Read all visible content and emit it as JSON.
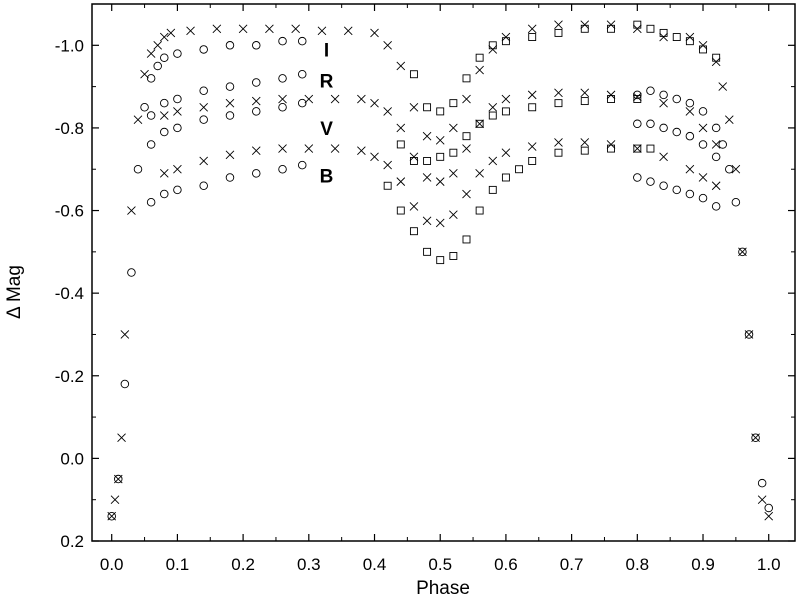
{
  "chart_data": {
    "type": "scatter",
    "title": "",
    "xlabel": "Phase",
    "ylabel": "Δ Mag",
    "xlim": [
      -0.03,
      1.04
    ],
    "ylim": [
      0.2,
      -1.1
    ],
    "y_inverted": true,
    "grid": false,
    "legend": "none",
    "x_ticks": [
      {
        "v": 0.0,
        "label": "0.0"
      },
      {
        "v": 0.1,
        "label": "0.1"
      },
      {
        "v": 0.2,
        "label": "0.2"
      },
      {
        "v": 0.3,
        "label": "0.3"
      },
      {
        "v": 0.4,
        "label": "0.4"
      },
      {
        "v": 0.5,
        "label": "0.5"
      },
      {
        "v": 0.6,
        "label": "0.6"
      },
      {
        "v": 0.7,
        "label": "0.7"
      },
      {
        "v": 0.8,
        "label": "0.8"
      },
      {
        "v": 0.9,
        "label": "0.9"
      },
      {
        "v": 1.0,
        "label": "1.0"
      }
    ],
    "y_ticks": [
      {
        "v": -1.0,
        "label": "-1.0"
      },
      {
        "v": -0.8,
        "label": "-0.8"
      },
      {
        "v": -0.6,
        "label": "-0.6"
      },
      {
        "v": -0.4,
        "label": "-0.4"
      },
      {
        "v": -0.2,
        "label": "-0.2"
      },
      {
        "v": 0.0,
        "label": "0.0"
      },
      {
        "v": 0.2,
        "label": "0.2"
      }
    ],
    "band_labels": [
      {
        "text": "I",
        "x": 0.327,
        "y": -0.99
      },
      {
        "text": "R",
        "x": 0.327,
        "y": -0.915
      },
      {
        "text": "V",
        "x": 0.327,
        "y": -0.8
      },
      {
        "text": "B",
        "x": 0.327,
        "y": -0.685
      }
    ],
    "series": [
      {
        "marker": "cross",
        "x": [
          0.0,
          0.005,
          0.01,
          0.015,
          0.02,
          0.03,
          0.04,
          0.05,
          0.06,
          0.07,
          0.08,
          0.09,
          0.12,
          0.16,
          0.2,
          0.24,
          0.28,
          0.32,
          0.36,
          0.4,
          0.42,
          0.44,
          0.46,
          0.48,
          0.5,
          0.52,
          0.54,
          0.56,
          0.58,
          0.6,
          0.64,
          0.68,
          0.72,
          0.76,
          0.8,
          0.84,
          0.88,
          0.9,
          0.92,
          0.93,
          0.94,
          0.95,
          0.96,
          0.97,
          0.98,
          0.99,
          1.0
        ],
        "y": [
          0.14,
          0.1,
          0.05,
          -0.05,
          -0.3,
          -0.6,
          -0.82,
          -0.93,
          -0.98,
          -1.0,
          -1.02,
          -1.03,
          -1.035,
          -1.04,
          -1.04,
          -1.04,
          -1.04,
          -1.035,
          -1.035,
          -1.03,
          -1.0,
          -0.95,
          -0.85,
          -0.78,
          -0.77,
          -0.8,
          -0.87,
          -0.94,
          -0.99,
          -1.02,
          -1.04,
          -1.05,
          -1.05,
          -1.05,
          -1.04,
          -1.02,
          -1.02,
          -1.0,
          -0.96,
          -0.9,
          -0.82,
          -0.7,
          -0.5,
          -0.3,
          -0.05,
          0.1,
          0.14
        ]
      },
      {
        "marker": "cross",
        "x": [
          0.08,
          0.1,
          0.14,
          0.18,
          0.22,
          0.26,
          0.3,
          0.34,
          0.38,
          0.4,
          0.42,
          0.44,
          0.46,
          0.48,
          0.5,
          0.52,
          0.54,
          0.56,
          0.58,
          0.6,
          0.64,
          0.68,
          0.72,
          0.76,
          0.8,
          0.84,
          0.88,
          0.9,
          0.92
        ],
        "y": [
          -0.83,
          -0.84,
          -0.85,
          -0.86,
          -0.865,
          -0.87,
          -0.87,
          -0.87,
          -0.87,
          -0.86,
          -0.84,
          -0.8,
          -0.73,
          -0.68,
          -0.67,
          -0.69,
          -0.75,
          -0.81,
          -0.85,
          -0.87,
          -0.88,
          -0.885,
          -0.885,
          -0.88,
          -0.875,
          -0.86,
          -0.84,
          -0.8,
          -0.76
        ]
      },
      {
        "marker": "cross",
        "x": [
          0.08,
          0.1,
          0.14,
          0.18,
          0.22,
          0.26,
          0.3,
          0.34,
          0.38,
          0.4,
          0.42,
          0.44,
          0.46,
          0.48,
          0.5,
          0.52,
          0.54,
          0.56,
          0.58,
          0.6,
          0.64,
          0.68,
          0.72,
          0.76,
          0.8,
          0.84,
          0.88,
          0.9,
          0.92
        ],
        "y": [
          -0.69,
          -0.7,
          -0.72,
          -0.735,
          -0.745,
          -0.75,
          -0.75,
          -0.75,
          -0.745,
          -0.73,
          -0.71,
          -0.67,
          -0.61,
          -0.575,
          -0.57,
          -0.59,
          -0.64,
          -0.69,
          -0.72,
          -0.74,
          -0.755,
          -0.765,
          -0.765,
          -0.76,
          -0.75,
          -0.73,
          -0.7,
          -0.68,
          -0.66
        ]
      },
      {
        "marker": "circle",
        "x": [
          0.0,
          0.01,
          0.02,
          0.03,
          0.04,
          0.05,
          0.06,
          0.07,
          0.08,
          0.1,
          0.14,
          0.18,
          0.22,
          0.26,
          0.29
        ],
        "y": [
          0.14,
          0.05,
          -0.18,
          -0.45,
          -0.7,
          -0.85,
          -0.92,
          -0.95,
          -0.97,
          -0.98,
          -0.99,
          -1.0,
          -1.0,
          -1.01,
          -1.01
        ]
      },
      {
        "marker": "circle",
        "x": [
          0.06,
          0.08,
          0.1,
          0.14,
          0.18,
          0.22,
          0.26,
          0.29
        ],
        "y": [
          -0.83,
          -0.86,
          -0.87,
          -0.89,
          -0.9,
          -0.91,
          -0.92,
          -0.93
        ]
      },
      {
        "marker": "circle",
        "x": [
          0.06,
          0.08,
          0.1,
          0.14,
          0.18,
          0.22,
          0.26,
          0.29
        ],
        "y": [
          -0.76,
          -0.79,
          -0.8,
          -0.82,
          -0.83,
          -0.84,
          -0.85,
          -0.86
        ]
      },
      {
        "marker": "circle",
        "x": [
          0.06,
          0.08,
          0.1,
          0.14,
          0.18,
          0.22,
          0.26,
          0.29
        ],
        "y": [
          -0.62,
          -0.64,
          -0.65,
          -0.66,
          -0.68,
          -0.69,
          -0.7,
          -0.71
        ]
      },
      {
        "marker": "circle",
        "x": [
          0.8,
          0.82,
          0.84,
          0.86,
          0.88,
          0.9,
          0.92,
          0.93,
          0.94,
          0.95,
          0.96,
          0.97,
          0.98,
          0.99,
          1.0
        ],
        "y": [
          -0.88,
          -0.89,
          -0.88,
          -0.87,
          -0.86,
          -0.84,
          -0.8,
          -0.76,
          -0.7,
          -0.62,
          -0.5,
          -0.3,
          -0.05,
          0.06,
          0.12
        ]
      },
      {
        "marker": "circle",
        "x": [
          0.8,
          0.82,
          0.84,
          0.86,
          0.88,
          0.9,
          0.92
        ],
        "y": [
          -0.81,
          -0.81,
          -0.8,
          -0.79,
          -0.78,
          -0.76,
          -0.73
        ]
      },
      {
        "marker": "circle",
        "x": [
          0.8,
          0.82,
          0.84,
          0.86,
          0.88,
          0.9,
          0.92
        ],
        "y": [
          -0.68,
          -0.67,
          -0.66,
          -0.65,
          -0.64,
          -0.63,
          -0.61
        ]
      },
      {
        "marker": "square",
        "x": [
          0.46,
          0.48,
          0.5,
          0.52,
          0.54,
          0.56,
          0.58,
          0.6,
          0.64,
          0.68,
          0.72,
          0.76,
          0.8,
          0.82,
          0.84,
          0.86,
          0.88,
          0.9,
          0.92
        ],
        "y": [
          -0.93,
          -0.85,
          -0.84,
          -0.86,
          -0.92,
          -0.97,
          -1.0,
          -1.01,
          -1.02,
          -1.03,
          -1.04,
          -1.04,
          -1.05,
          -1.04,
          -1.03,
          -1.02,
          -1.01,
          -0.99,
          -0.97
        ]
      },
      {
        "marker": "square",
        "x": [
          0.44,
          0.46,
          0.48,
          0.5,
          0.52,
          0.54,
          0.56,
          0.58,
          0.6,
          0.64,
          0.68,
          0.72,
          0.76,
          0.8
        ],
        "y": [
          -0.76,
          -0.72,
          -0.72,
          -0.73,
          -0.74,
          -0.78,
          -0.81,
          -0.83,
          -0.84,
          -0.85,
          -0.86,
          -0.865,
          -0.87,
          -0.87
        ]
      },
      {
        "marker": "square",
        "x": [
          0.42,
          0.44,
          0.46,
          0.48,
          0.5,
          0.52,
          0.54,
          0.56,
          0.58,
          0.6,
          0.62,
          0.64,
          0.68,
          0.72,
          0.76,
          0.8,
          0.82
        ],
        "y": [
          -0.66,
          -0.6,
          -0.55,
          -0.5,
          -0.48,
          -0.49,
          -0.53,
          -0.6,
          -0.65,
          -0.68,
          -0.7,
          -0.72,
          -0.74,
          -0.745,
          -0.75,
          -0.75,
          -0.75
        ]
      }
    ]
  }
}
